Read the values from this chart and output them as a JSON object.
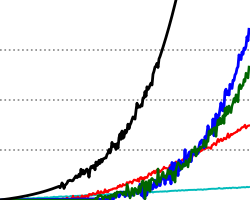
{
  "background_color": "#ffffff",
  "grid_color": "#888888",
  "ylim": [
    0,
    10
  ],
  "xlim": [
    0,
    250
  ],
  "lines": {
    "black": {
      "color": "#000000",
      "linewidth": 2.0
    },
    "green": {
      "color": "#006600",
      "linewidth": 1.8
    },
    "blue": {
      "color": "#0000ff",
      "linewidth": 2.0
    },
    "red": {
      "color": "#ff0000",
      "linewidth": 1.6
    },
    "cyan": {
      "color": "#00bbbb",
      "linewidth": 1.4
    }
  },
  "grid_yticks": [
    2.5,
    5.0,
    7.5
  ],
  "grid_linestyle": ":",
  "grid_linewidth": 1.2
}
